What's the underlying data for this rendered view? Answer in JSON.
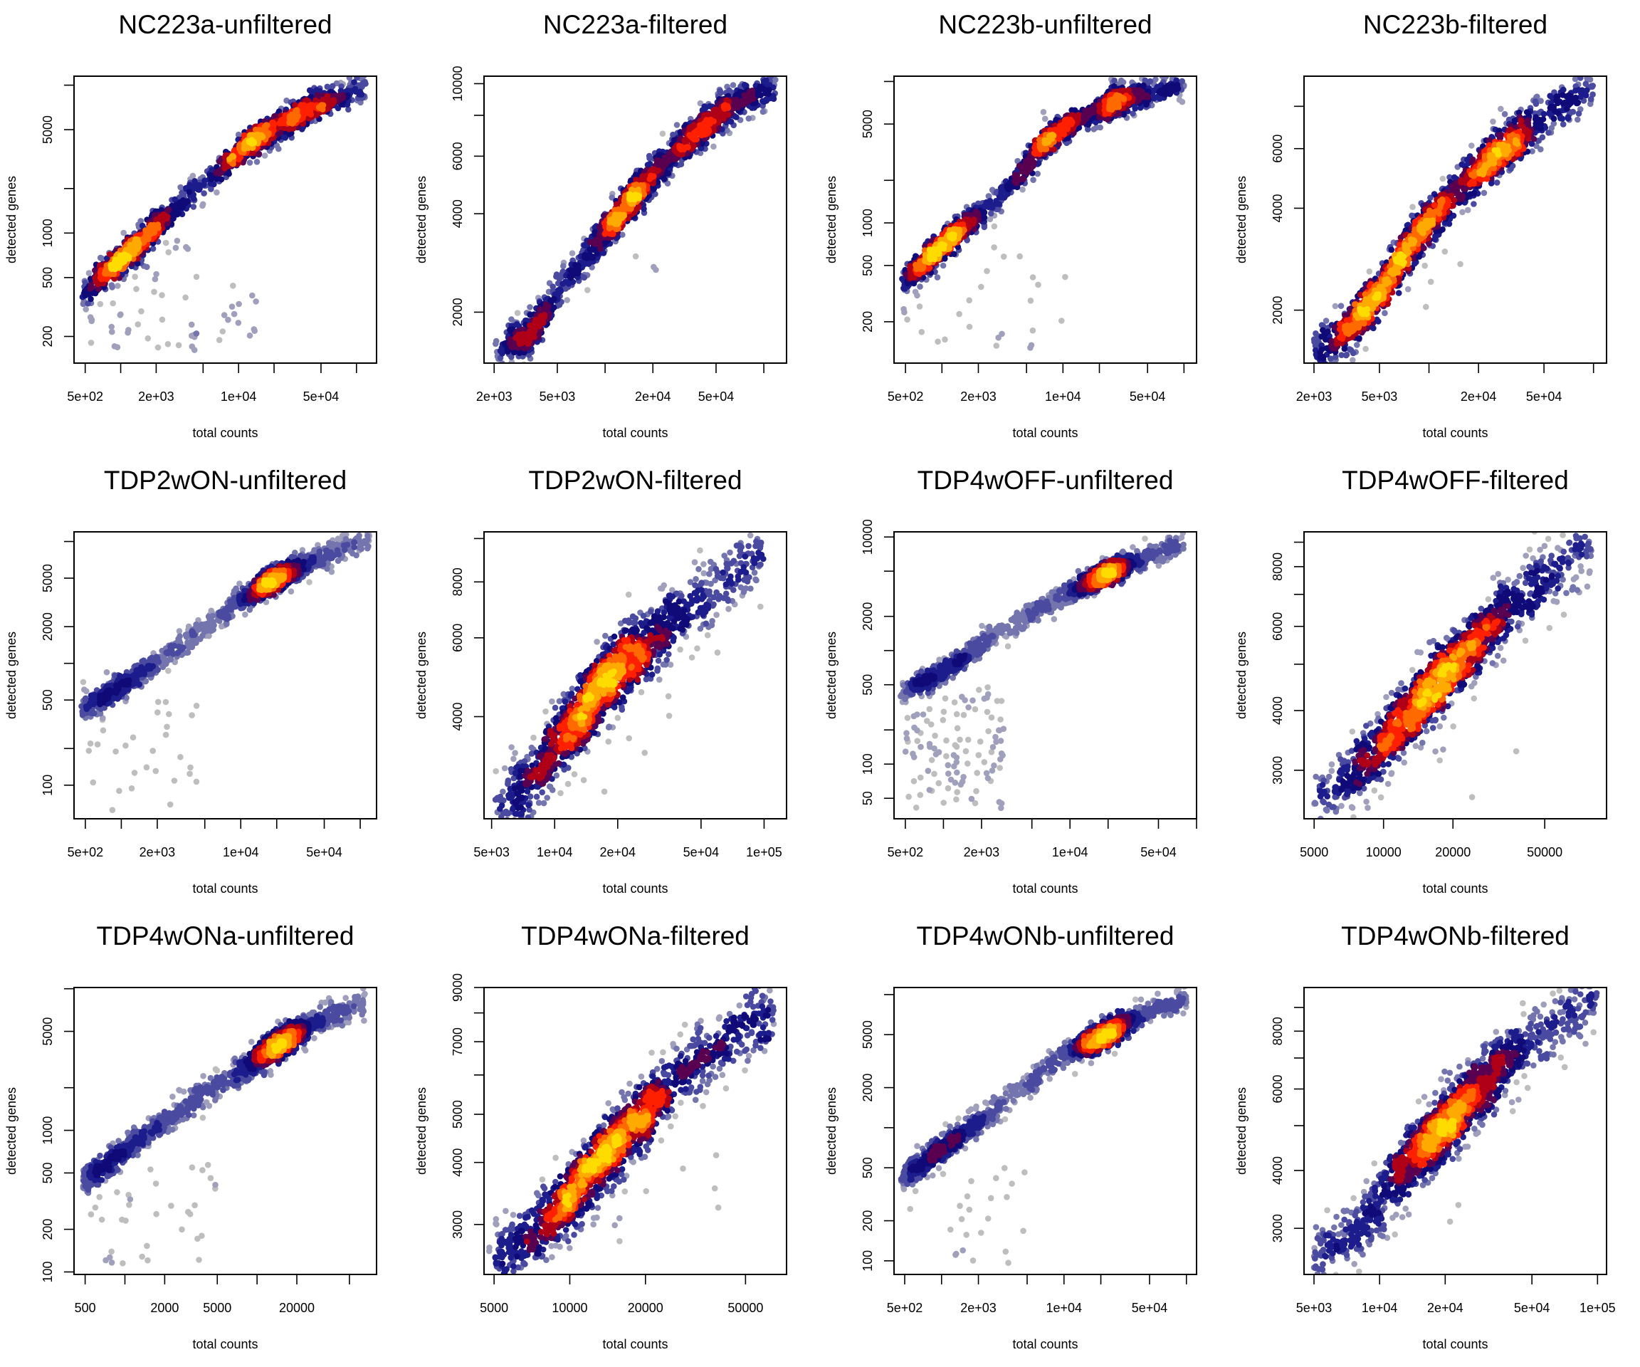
{
  "palette": [
    "#bebebe",
    "#a0a0bc",
    "#7474ae",
    "#4a4aa0",
    "#1c1c8c",
    "#100a78",
    "#5a0050",
    "#b00018",
    "#ff2000",
    "#ff6a00",
    "#ffaa00",
    "#ffdc00"
  ],
  "chart_data": [
    {
      "type": "scatter",
      "title": "NC223a-unfiltered",
      "xlabel": "total counts",
      "ylabel": "detected genes",
      "log": "xy",
      "xlim": [
        402,
        148000
      ],
      "ylim": [
        132,
        11500
      ],
      "xticks": [
        500,
        1000,
        2000,
        5000,
        10000,
        20000,
        50000,
        100000
      ],
      "xtick_labels": [
        "5e+02",
        "",
        "2e+03",
        "",
        "1e+04",
        "",
        "5e+04",
        ""
      ],
      "yticks": [
        200,
        500,
        1000,
        2000,
        5000,
        10000
      ],
      "ytick_labels": [
        "200",
        "500",
        "1000",
        "",
        "5000",
        ""
      ],
      "ridge": [
        [
          480,
          400
        ],
        [
          1200,
          750
        ],
        [
          3000,
          1500
        ],
        [
          13000,
          4200
        ],
        [
          40000,
          7000
        ],
        [
          120000,
          9800
        ]
      ],
      "hotspots": [
        [
          1200,
          1,
          0.18
        ],
        [
          13000,
          0.7,
          0.15
        ],
        [
          35000,
          0.5,
          0.15
        ]
      ],
      "n": 1600,
      "spread": 0.05,
      "outliers": {
        "n": 60,
        "x": [
          500,
          15000
        ],
        "y": [
          160,
          900
        ]
      }
    },
    {
      "type": "scatter",
      "title": "NC223a-filtered",
      "xlabel": "total counts",
      "ylabel": "detected genes",
      "log": "xy",
      "xlim": [
        1727,
        139000
      ],
      "ylim": [
        1397,
        10540
      ],
      "xticks": [
        2000,
        5000,
        10000,
        20000,
        50000,
        100000
      ],
      "xtick_labels": [
        "2e+03",
        "5e+03",
        "",
        "2e+04",
        "5e+04",
        ""
      ],
      "yticks": [
        2000,
        4000,
        6000,
        8000,
        10000
      ],
      "ytick_labels": [
        "2000",
        "4000",
        "6000",
        "",
        "10000"
      ],
      "ridge": [
        [
          2000,
          1500
        ],
        [
          3500,
          1750
        ],
        [
          5000,
          2300
        ],
        [
          10000,
          3500
        ],
        [
          13000,
          4200
        ],
        [
          30000,
          6500
        ],
        [
          60000,
          8500
        ],
        [
          120000,
          9800
        ]
      ],
      "hotspots": [
        [
          13000,
          1,
          0.12
        ],
        [
          40000,
          0.8,
          0.15
        ],
        [
          3500,
          0.4,
          0.1
        ]
      ],
      "n": 1600,
      "spread": 0.03,
      "outliers": {
        "n": 5,
        "x": [
          6000,
          30000
        ],
        "y": [
          2500,
          5500
        ]
      }
    },
    {
      "type": "scatter",
      "title": "NC223b-unfiltered",
      "xlabel": "total counts",
      "ylabel": "detected genes",
      "log": "xy",
      "xlim": [
        402,
        127000
      ],
      "ylim": [
        102,
        10900
      ],
      "xticks": [
        500,
        1000,
        2000,
        5000,
        10000,
        20000,
        50000,
        100000
      ],
      "xtick_labels": [
        "5e+02",
        "",
        "2e+03",
        "",
        "1e+04",
        "",
        "5e+04",
        ""
      ],
      "yticks": [
        200,
        500,
        1000,
        2000,
        5000,
        10000
      ],
      "ytick_labels": [
        "200",
        "500",
        "1000",
        "",
        "5000",
        ""
      ],
      "ridge": [
        [
          480,
          390
        ],
        [
          1000,
          680
        ],
        [
          3000,
          1500
        ],
        [
          7500,
          4000
        ],
        [
          27000,
          7300
        ],
        [
          100000,
          9500
        ]
      ],
      "hotspots": [
        [
          1000,
          1,
          0.18
        ],
        [
          7500,
          0.7,
          0.15
        ],
        [
          27000,
          0.5,
          0.12
        ]
      ],
      "n": 1600,
      "spread": 0.05,
      "outliers": {
        "n": 30,
        "x": [
          450,
          12000
        ],
        "y": [
          130,
          700
        ]
      }
    },
    {
      "type": "scatter",
      "title": "NC223b-filtered",
      "xlabel": "total counts",
      "ylabel": "detected genes",
      "log": "xy",
      "xlim": [
        1740,
        120000
      ],
      "ylim": [
        1395,
        9820
      ],
      "xticks": [
        2000,
        5000,
        10000,
        20000,
        50000,
        100000
      ],
      "xtick_labels": [
        "2e+03",
        "5e+03",
        "",
        "2e+04",
        "5e+04",
        ""
      ],
      "yticks": [
        2000,
        4000,
        6000,
        8000
      ],
      "ytick_labels": [
        "2000",
        "4000",
        "6000",
        ""
      ],
      "ridge": [
        [
          2000,
          1500
        ],
        [
          3000,
          1700
        ],
        [
          4500,
          2100
        ],
        [
          8000,
          3200
        ],
        [
          15000,
          4500
        ],
        [
          28000,
          6000
        ],
        [
          45000,
          7200
        ],
        [
          100000,
          9000
        ]
      ],
      "hotspots": [
        [
          8000,
          1,
          0.15
        ],
        [
          28000,
          0.8,
          0.13
        ],
        [
          4000,
          0.5,
          0.1
        ]
      ],
      "n": 1600,
      "spread": 0.035,
      "outliers": {
        "n": 5,
        "x": [
          5000,
          30000
        ],
        "y": [
          1800,
          5000
        ]
      }
    },
    {
      "type": "scatter",
      "title": "TDP2wON-unfiltered",
      "xlabel": "total counts",
      "ylabel": "detected genes",
      "log": "xy",
      "xlim": [
        402,
        137000
      ],
      "ylim": [
        53,
        12000
      ],
      "xticks": [
        500,
        1000,
        2000,
        5000,
        10000,
        20000,
        50000,
        100000
      ],
      "xtick_labels": [
        "5e+02",
        "",
        "2e+03",
        "",
        "1e+04",
        "",
        "5e+04",
        ""
      ],
      "yticks": [
        100,
        200,
        500,
        1000,
        2000,
        5000,
        10000
      ],
      "ytick_labels": [
        "100",
        "",
        "500",
        "",
        "2000",
        "5000",
        ""
      ],
      "ridge": [
        [
          480,
          420
        ],
        [
          1000,
          650
        ],
        [
          2000,
          1000
        ],
        [
          5000,
          2000
        ],
        [
          10000,
          3300
        ],
        [
          20000,
          5000
        ],
        [
          40000,
          7000
        ],
        [
          120000,
          10500
        ]
      ],
      "hotspots": [
        [
          19000,
          1,
          0.12
        ],
        [
          900,
          0.35,
          0.2
        ]
      ],
      "n": 1600,
      "spread": 0.05,
      "outliers": {
        "n": 30,
        "x": [
          500,
          5000
        ],
        "y": [
          60,
          500
        ]
      }
    },
    {
      "type": "scatter",
      "title": "TDP2wON-filtered",
      "xlabel": "total counts",
      "ylabel": "detected genes",
      "log": "xy",
      "xlim": [
        4600,
        128000
      ],
      "ylim": [
        2365,
        10350
      ],
      "xticks": [
        5000,
        10000,
        20000,
        50000,
        100000
      ],
      "xtick_labels": [
        "5e+03",
        "1e+04",
        "2e+04",
        "5e+04",
        "1e+05"
      ],
      "yticks": [
        4000,
        6000,
        8000,
        10000
      ],
      "ytick_labels": [
        "4000",
        "6000",
        "8000",
        ""
      ],
      "ridge": [
        [
          5200,
          2500
        ],
        [
          8000,
          3000
        ],
        [
          10000,
          3400
        ],
        [
          17000,
          4700
        ],
        [
          30000,
          6000
        ],
        [
          45000,
          7000
        ],
        [
          100000,
          9300
        ]
      ],
      "hotspots": [
        [
          17000,
          1,
          0.17
        ]
      ],
      "n": 1600,
      "spread": 0.04,
      "outliers": {
        "n": 8,
        "x": [
          6000,
          40000
        ],
        "y": [
          2700,
          6500
        ]
      }
    },
    {
      "type": "scatter",
      "title": "TDP4wOFF-unfiltered",
      "xlabel": "total counts",
      "ylabel": "detected genes",
      "log": "xy",
      "xlim": [
        407,
        100000
      ],
      "ylim": [
        33,
        11100
      ],
      "xticks": [
        500,
        1000,
        2000,
        5000,
        10000,
        20000,
        50000,
        100000
      ],
      "xtick_labels": [
        "5e+02",
        "",
        "2e+03",
        "",
        "1e+04",
        "",
        "5e+04",
        ""
      ],
      "yticks": [
        50,
        100,
        200,
        500,
        1000,
        2000,
        5000,
        10000
      ],
      "ytick_labels": [
        "50",
        "100",
        "",
        "500",
        "",
        "2000",
        "",
        "10000"
      ],
      "ridge": [
        [
          480,
          420
        ],
        [
          1000,
          650
        ],
        [
          2000,
          1100
        ],
        [
          5000,
          2100
        ],
        [
          10000,
          3300
        ],
        [
          20000,
          4800
        ],
        [
          80000,
          8800
        ]
      ],
      "hotspots": [
        [
          19000,
          1,
          0.12
        ],
        [
          900,
          0.3,
          0.2
        ]
      ],
      "n": 1600,
      "spread": 0.05,
      "outliers": {
        "n": 110,
        "x": [
          500,
          3000
        ],
        "y": [
          40,
          500
        ]
      }
    },
    {
      "type": "scatter",
      "title": "TDP4wOFF-filtered",
      "xlabel": "total counts",
      "ylabel": "detected genes",
      "log": "xy",
      "xlim": [
        4520,
        92700
      ],
      "ylim": [
        2375,
        9460
      ],
      "xticks": [
        5000,
        10000,
        20000,
        50000
      ],
      "xtick_labels": [
        "5000",
        "10000",
        "20000",
        "50000"
      ],
      "yticks": [
        3000,
        4000,
        5000,
        6000,
        7000,
        8000,
        9000
      ],
      "ytick_labels": [
        "3000",
        "4000",
        "",
        "6000",
        "",
        "8000",
        ""
      ],
      "ridge": [
        [
          5000,
          2500
        ],
        [
          8000,
          3100
        ],
        [
          12000,
          3800
        ],
        [
          19000,
          4800
        ],
        [
          30000,
          6000
        ],
        [
          40000,
          7000
        ],
        [
          80000,
          8800
        ]
      ],
      "hotspots": [
        [
          17000,
          1,
          0.18
        ]
      ],
      "n": 1600,
      "spread": 0.035,
      "outliers": {
        "n": 8,
        "x": [
          7000,
          40000
        ],
        "y": [
          2600,
          6000
        ]
      }
    },
    {
      "type": "scatter",
      "title": "TDP4wONa-unfiltered",
      "xlabel": "total counts",
      "ylabel": "detected genes",
      "log": "xy",
      "xlim": [
        412,
        80200
      ],
      "ylim": [
        96,
        10200
      ],
      "xticks": [
        500,
        1000,
        2000,
        5000,
        10000,
        20000,
        50000
      ],
      "xtick_labels": [
        "500",
        "",
        "2000",
        "5000",
        "",
        "20000",
        ""
      ],
      "yticks": [
        100,
        200,
        500,
        1000,
        2000,
        5000,
        10000
      ],
      "ytick_labels": [
        "100",
        "200",
        "500",
        "1000",
        "",
        "5000",
        ""
      ],
      "ridge": [
        [
          480,
          430
        ],
        [
          1000,
          720
        ],
        [
          2000,
          1150
        ],
        [
          5000,
          2100
        ],
        [
          15000,
          4100
        ],
        [
          30000,
          6000
        ],
        [
          66000,
          8200
        ]
      ],
      "hotspots": [
        [
          15000,
          1,
          0.12
        ],
        [
          900,
          0.3,
          0.2
        ]
      ],
      "n": 1600,
      "spread": 0.05,
      "outliers": {
        "n": 35,
        "x": [
          500,
          5000
        ],
        "y": [
          110,
          600
        ]
      }
    },
    {
      "type": "scatter",
      "title": "TDP4wONa-filtered",
      "xlabel": "total counts",
      "ylabel": "detected genes",
      "log": "xy",
      "xlim": [
        4560,
        72800
      ],
      "ylim": [
        2380,
        9000
      ],
      "xticks": [
        5000,
        10000,
        20000,
        50000
      ],
      "xtick_labels": [
        "5000",
        "10000",
        "20000",
        "50000"
      ],
      "yticks": [
        3000,
        4000,
        5000,
        6000,
        7000,
        8000,
        9000
      ],
      "ytick_labels": [
        "3000",
        "4000",
        "5000",
        "",
        "7000",
        "",
        "9000"
      ],
      "ridge": [
        [
          5000,
          2500
        ],
        [
          8000,
          3000
        ],
        [
          13000,
          4000
        ],
        [
          20000,
          5000
        ],
        [
          30000,
          6300
        ],
        [
          65000,
          8100
        ]
      ],
      "hotspots": [
        [
          13500,
          1,
          0.18
        ]
      ],
      "n": 1600,
      "spread": 0.035,
      "outliers": {
        "n": 8,
        "x": [
          7000,
          40000
        ],
        "y": [
          2500,
          5500
        ]
      }
    },
    {
      "type": "scatter",
      "title": "TDP4wONb-unfiltered",
      "xlabel": "total counts",
      "ylabel": "detected genes",
      "log": "xy",
      "xlim": [
        409,
        121000
      ],
      "ylim": [
        79,
        11300
      ],
      "xticks": [
        500,
        1000,
        2000,
        5000,
        10000,
        20000,
        50000,
        100000
      ],
      "xtick_labels": [
        "5e+02",
        "",
        "2e+03",
        "",
        "1e+04",
        "",
        "5e+04",
        ""
      ],
      "yticks": [
        100,
        200,
        500,
        1000,
        2000,
        5000,
        10000
      ],
      "ytick_labels": [
        "100",
        "200",
        "500",
        "",
        "2000",
        "5000",
        ""
      ],
      "ridge": [
        [
          480,
          420
        ],
        [
          1200,
          780
        ],
        [
          3000,
          1500
        ],
        [
          10000,
          3500
        ],
        [
          22000,
          5000
        ],
        [
          40000,
          6800
        ],
        [
          100000,
          9400
        ]
      ],
      "hotspots": [
        [
          21000,
          1,
          0.12
        ],
        [
          1100,
          0.45,
          0.18
        ]
      ],
      "n": 1600,
      "spread": 0.05,
      "outliers": {
        "n": 25,
        "x": [
          500,
          5000
        ],
        "y": [
          90,
          500
        ]
      }
    },
    {
      "type": "scatter",
      "title": "TDP4wONb-filtered",
      "xlabel": "total counts",
      "ylabel": "detected genes",
      "log": "xy",
      "xlim": [
        4500,
        110000
      ],
      "ylim": [
        2385,
        9940
      ],
      "xticks": [
        5000,
        10000,
        20000,
        50000,
        100000
      ],
      "xtick_labels": [
        "5e+03",
        "1e+04",
        "2e+04",
        "5e+04",
        "1e+05"
      ],
      "yticks": [
        3000,
        4000,
        5000,
        6000,
        7000,
        8000,
        9000
      ],
      "ytick_labels": [
        "3000",
        "4000",
        "",
        "6000",
        "",
        "8000",
        ""
      ],
      "ridge": [
        [
          5000,
          2550
        ],
        [
          8000,
          3000
        ],
        [
          11000,
          3700
        ],
        [
          20000,
          5000
        ],
        [
          40000,
          7000
        ],
        [
          100000,
          9700
        ]
      ],
      "hotspots": [
        [
          20000,
          1,
          0.17
        ]
      ],
      "n": 1600,
      "spread": 0.035,
      "outliers": {
        "n": 6,
        "x": [
          8000,
          30000
        ],
        "y": [
          3000,
          5000
        ]
      }
    }
  ]
}
